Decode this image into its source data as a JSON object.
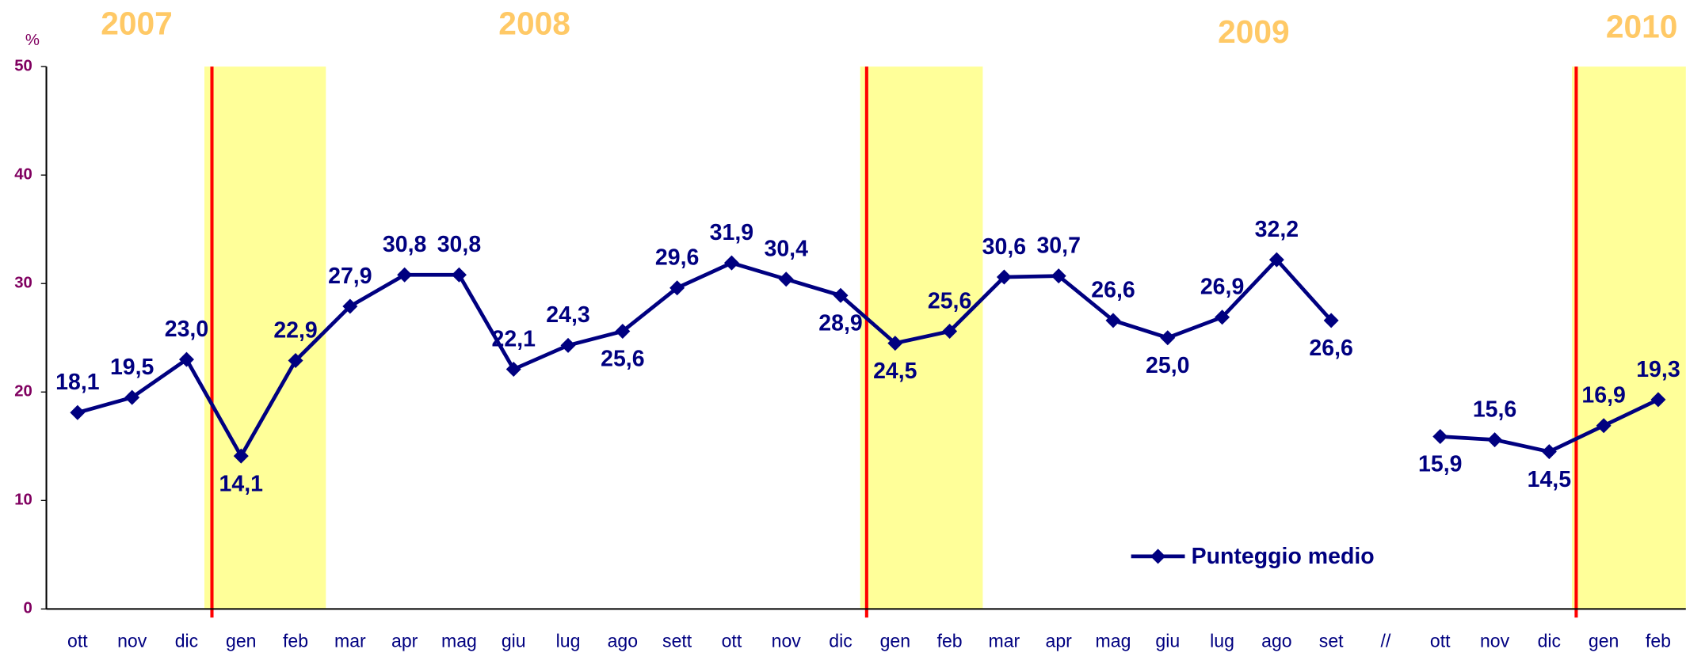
{
  "chart_data": {
    "type": "line",
    "y_unit": "%",
    "annotations": [
      "2007",
      "2008",
      "2009",
      "2010"
    ],
    "categories": [
      "ott",
      "nov",
      "dic",
      "gen",
      "feb",
      "mar",
      "apr",
      "mag",
      "giu",
      "lug",
      "ago",
      "sett",
      "ott",
      "nov",
      "dic",
      "gen",
      "feb",
      "mar",
      "apr",
      "mag",
      "giu",
      "lug",
      "ago",
      "set",
      "//",
      "ott",
      "nov",
      "dic",
      "gen",
      "feb"
    ],
    "series": [
      {
        "name": "Punteggio medio",
        "color": "#000080",
        "values": [
          18.1,
          19.5,
          23.0,
          14.1,
          22.9,
          27.9,
          30.8,
          30.8,
          22.1,
          24.3,
          25.6,
          29.6,
          31.9,
          30.4,
          28.9,
          24.5,
          25.6,
          30.6,
          30.7,
          26.6,
          25.0,
          26.9,
          32.2,
          26.6,
          null,
          15.9,
          15.6,
          14.5,
          16.9,
          19.3
        ],
        "value_labels": [
          "18,1",
          "19,5",
          "23,0",
          "14,1",
          "22,9",
          "27,9",
          "30,8",
          "30,8",
          "22,1",
          "24,3",
          "25,6",
          "29,6",
          "31,9",
          "30,4",
          "28,9",
          "24,5",
          "25,6",
          "30,6",
          "30,7",
          "26,6",
          "25,0",
          "26,9",
          "32,2",
          "26,6",
          null,
          "15,9",
          "15,6",
          "14,5",
          "16,9",
          "19,3"
        ]
      }
    ],
    "ylim": [
      0,
      50
    ],
    "yticks": [
      0,
      10,
      20,
      30,
      40,
      50
    ],
    "legend": "bottom-right"
  }
}
